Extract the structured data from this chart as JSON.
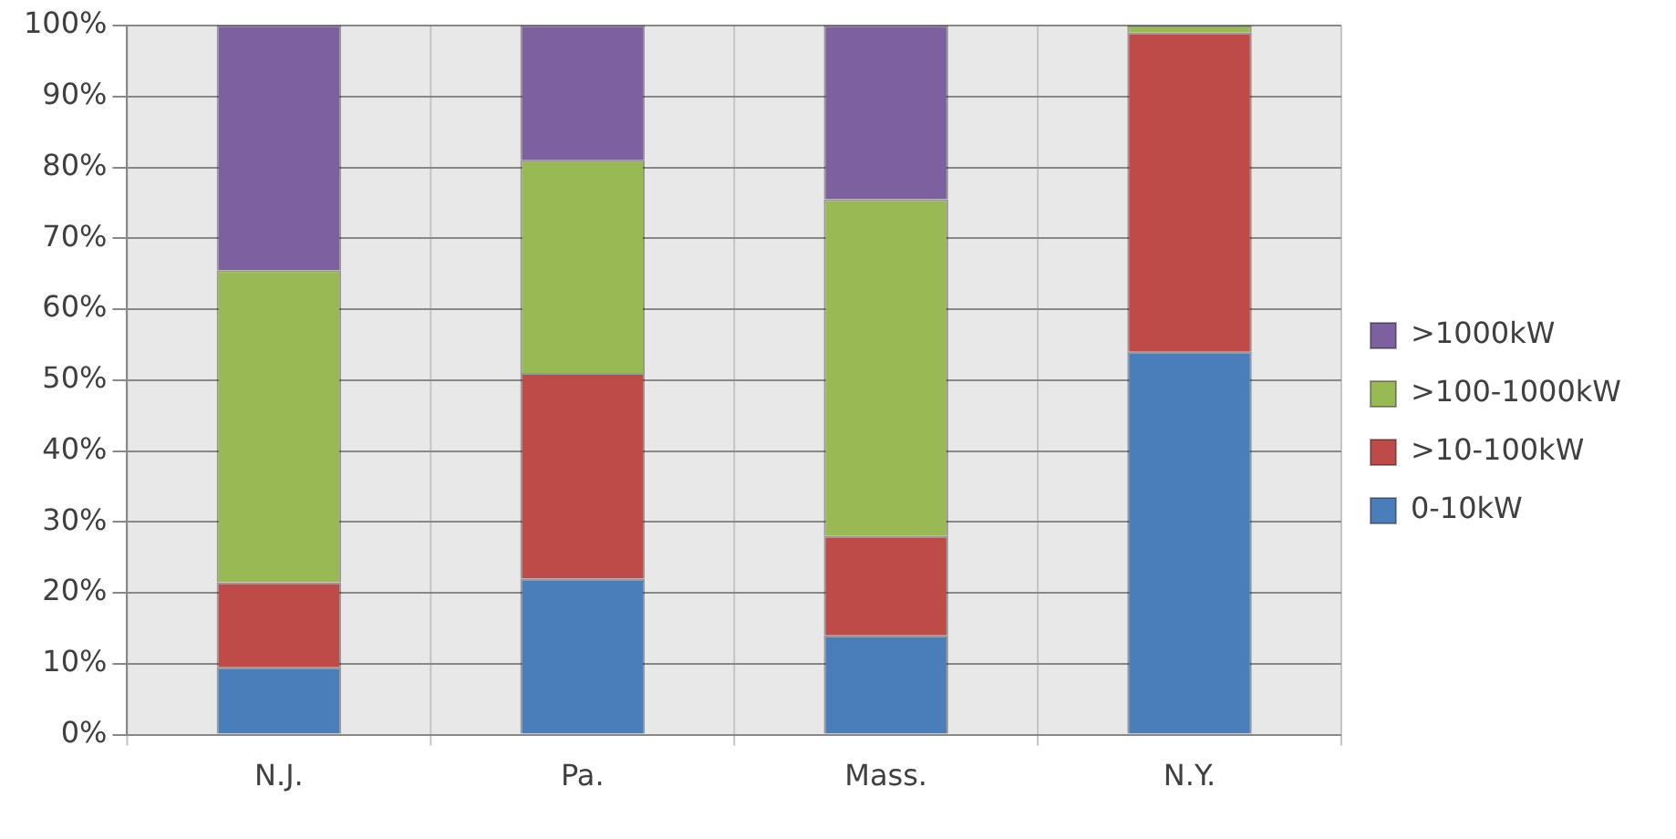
{
  "chart_data": {
    "type": "bar",
    "stacked": true,
    "categories": [
      "N.J.",
      "Pa.",
      "Mass.",
      "N.Y."
    ],
    "series": [
      {
        "name": "0-10kW",
        "color": "#4a7ebb",
        "values": [
          9.5,
          22,
          14,
          54
        ]
      },
      {
        "name": ">10-100kW",
        "color": "#be4b48",
        "values": [
          12,
          29,
          14,
          45
        ]
      },
      {
        "name": ">100-1000kW",
        "color": "#98b954",
        "values": [
          44,
          30,
          47.5,
          1
        ]
      },
      {
        "name": ">1000kW",
        "color": "#7d60a0",
        "values": [
          34.5,
          19,
          24.5,
          0
        ]
      }
    ],
    "ylim": [
      0,
      100
    ],
    "yticks": [
      {
        "value": 0,
        "label": "0%"
      },
      {
        "value": 10,
        "label": "10%"
      },
      {
        "value": 20,
        "label": "20%"
      },
      {
        "value": 30,
        "label": "30%"
      },
      {
        "value": 40,
        "label": "40%"
      },
      {
        "value": 50,
        "label": "50%"
      },
      {
        "value": 60,
        "label": "60%"
      },
      {
        "value": 70,
        "label": "70%"
      },
      {
        "value": 80,
        "label": "80%"
      },
      {
        "value": 90,
        "label": "90%"
      },
      {
        "value": 100,
        "label": "100%"
      }
    ],
    "grid": "y",
    "legend": "right"
  }
}
